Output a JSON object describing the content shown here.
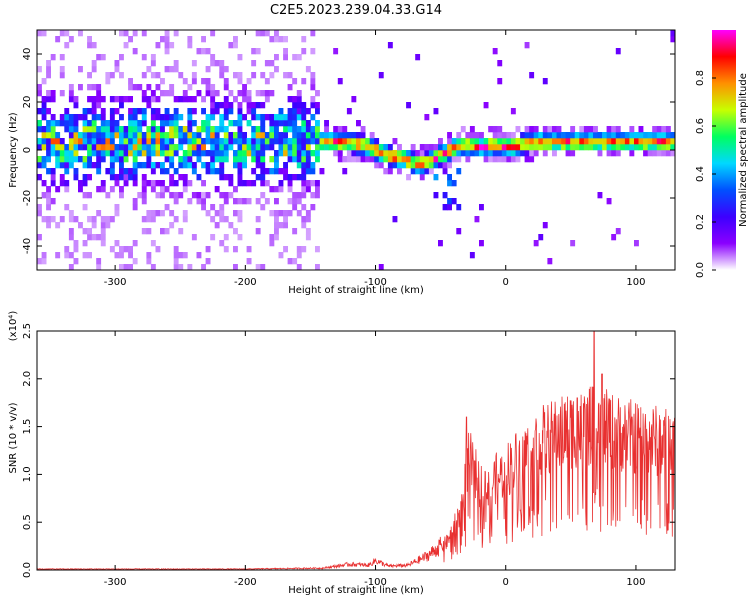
{
  "title": "C2E5.2023.239.04.33.G14",
  "chart_data": [
    {
      "type": "heatmap",
      "name": "spectrogram",
      "xlabel": "Height of straight line (km)",
      "ylabel": "Frequency (Hz)",
      "xlim": [
        -360,
        130
      ],
      "ylim": [
        -50,
        50
      ],
      "xticks": [
        -300,
        -200,
        -100,
        0,
        100
      ],
      "yticks": [
        -40,
        -20,
        0,
        20,
        40
      ],
      "colorbar": {
        "label": "Normalized spectral amplitude",
        "range": [
          0,
          1
        ],
        "ticks": [
          "0.0",
          "0.2",
          "0.4",
          "0.6",
          "0.8"
        ],
        "colors": [
          "#ffffff",
          "#8a00ff",
          "#3c00ff",
          "#0050ff",
          "#00d8ff",
          "#00ff60",
          "#c8ff00",
          "#ff9000",
          "#ff0000",
          "#ff00ff"
        ]
      },
      "noise_region_x": [
        -360,
        -145
      ],
      "signal_track": [
        {
          "x": -145,
          "y": 2
        },
        {
          "x": -130,
          "y": 2
        },
        {
          "x": -110,
          "y": 1
        },
        {
          "x": -95,
          "y": -3
        },
        {
          "x": -80,
          "y": -5
        },
        {
          "x": -70,
          "y": -7
        },
        {
          "x": -60,
          "y": -6
        },
        {
          "x": -50,
          "y": -3
        },
        {
          "x": -40,
          "y": 0
        },
        {
          "x": -30,
          "y": 1
        },
        {
          "x": -20,
          "y": 0
        },
        {
          "x": -10,
          "y": 1
        },
        {
          "x": 0,
          "y": 0
        },
        {
          "x": 20,
          "y": 2
        },
        {
          "x": 40,
          "y": 2
        },
        {
          "x": 60,
          "y": 2
        },
        {
          "x": 80,
          "y": 2
        },
        {
          "x": 100,
          "y": 2
        },
        {
          "x": 130,
          "y": 2
        }
      ]
    },
    {
      "type": "line",
      "name": "snr",
      "xlabel": "Height of straight line (km)",
      "ylabel": "SNR (10 * v/v)",
      "y_multiplier": "(x10⁴)",
      "xlim": [
        -360,
        130
      ],
      "ylim": [
        0,
        2.5
      ],
      "xticks": [
        -300,
        -200,
        -100,
        0,
        100
      ],
      "yticks": [
        "0.0",
        "0.5",
        "1.0",
        "1.5",
        "2.0",
        "2.5"
      ],
      "color": "#e83030",
      "envelope": [
        {
          "x": -360,
          "y": 0.01
        },
        {
          "x": -200,
          "y": 0.01
        },
        {
          "x": -140,
          "y": 0.02
        },
        {
          "x": -120,
          "y": 0.06
        },
        {
          "x": -105,
          "y": 0.05
        },
        {
          "x": -100,
          "y": 0.1
        },
        {
          "x": -90,
          "y": 0.04
        },
        {
          "x": -75,
          "y": 0.05
        },
        {
          "x": -60,
          "y": 0.15
        },
        {
          "x": -45,
          "y": 0.3
        },
        {
          "x": -35,
          "y": 0.6
        },
        {
          "x": -28,
          "y": 1.2
        },
        {
          "x": -20,
          "y": 0.9
        },
        {
          "x": -5,
          "y": 1.0
        },
        {
          "x": 10,
          "y": 1.2
        },
        {
          "x": 30,
          "y": 1.4
        },
        {
          "x": 50,
          "y": 1.5
        },
        {
          "x": 70,
          "y": 1.55
        },
        {
          "x": 90,
          "y": 1.45
        },
        {
          "x": 110,
          "y": 1.4
        },
        {
          "x": 130,
          "y": 1.35
        }
      ],
      "peaks": [
        {
          "x": -30,
          "y": 1.6
        },
        {
          "x": 55,
          "y": 1.8
        },
        {
          "x": 68,
          "y": 2.5
        },
        {
          "x": 74,
          "y": 2.05
        },
        {
          "x": 97,
          "y": 1.6
        }
      ]
    }
  ]
}
